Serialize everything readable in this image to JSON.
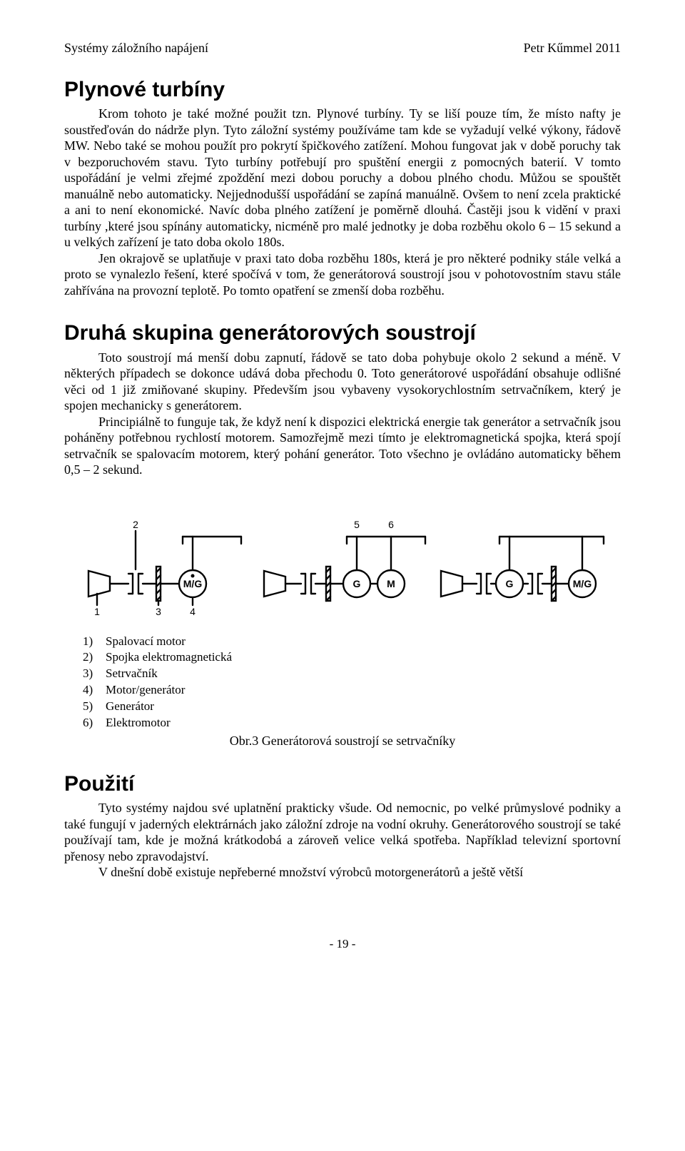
{
  "header": {
    "left": "Systémy záložního napájení",
    "right": "Petr Kűmmel  2011"
  },
  "section1": {
    "title": "Plynové turbíny",
    "p1": "Krom tohoto je také možné použit tzn. Plynové turbíny. Ty se liší pouze tím, že místo nafty je soustřeďován do nádrže plyn. Tyto záložní systémy používáme tam kde se vyžadují velké výkony, řádově MW. Nebo také se mohou použít pro pokrytí špičkového zatížení. Mohou fungovat jak v době poruchy tak v bezporuchovém stavu. Tyto turbíny potřebují pro spuštění energii z pomocných baterií. V tomto uspořádání je velmi zřejmé zpoždění mezi dobou poruchy a dobou plného chodu. Můžou se spouštět manuálně nebo automaticky. Nejjednodušší uspořádání se zapíná manuálně. Ovšem to není zcela praktické a ani to není ekonomické. Navíc doba plného zatížení je poměrně dlouhá. Častěji jsou k vidění v praxi  turbíny ,které jsou spínány automaticky, nicméně pro malé jednotky je doba rozběhu okolo 6 – 15 sekund a u velkých zařízení je tato doba okolo 180s.",
    "p2": "Jen okrajově se uplatňuje v praxi tato doba rozběhu 180s, která je pro některé podniky stále velká a proto se vynalezlo řešení, které spočívá v tom, že generátorová soustrojí jsou v pohotovostním stavu stále zahřívána na provozní teplotě. Po tomto opatření se zmenší doba rozběhu."
  },
  "section2": {
    "title": "Druhá skupina generátorových soustrojí",
    "p1": "Toto soustrojí má menší dobu zapnutí, řádově se tato doba pohybuje okolo 2 sekund a méně. V některých případech se dokonce udává doba přechodu 0. Toto generátorové uspořádání obsahuje odlišné věci od 1 již zmiňované skupiny. Především jsou vybaveny vysokorychlostním setrvačníkem, který je spojen mechanicky s generátorem.",
    "p2": "Principiálně to funguje tak, že když není k dispozici elektrická energie tak generátor a setrvačník jsou poháněny potřebnou rychlostí motorem. Samozřejmě mezi tímto je elektromagnetická spojka, která spojí setrvačník se spalovacím motorem, který pohání generátor. Toto všechno je ovládáno automaticky během 0,5 – 2 sekund."
  },
  "figure": {
    "panels": [
      {
        "nodes": [
          "M/G"
        ],
        "top_labels": [
          "2"
        ],
        "bottom_labels": [
          "1",
          "3",
          "4"
        ]
      },
      {
        "nodes": [
          "G",
          "M"
        ],
        "top_labels": [
          "5",
          "6"
        ]
      },
      {
        "nodes": [
          "G",
          "M/G"
        ]
      }
    ],
    "colors": {
      "stroke": "#000000",
      "bg": "#ffffff",
      "text": "#000000"
    },
    "stroke_width": 2.4,
    "font_size_labels": 14,
    "font_family": "Arial",
    "caption": "Obr.3 Generátorová soustrojí se setrvačníky"
  },
  "legend": [
    {
      "n": "1)",
      "t": "Spalovací motor"
    },
    {
      "n": "2)",
      "t": "Spojka elektromagnetická"
    },
    {
      "n": "3)",
      "t": "Setrvačník"
    },
    {
      "n": "4)",
      "t": "Motor/generátor"
    },
    {
      "n": "5)",
      "t": "Generátor"
    },
    {
      "n": "6)",
      "t": "Elektromotor"
    }
  ],
  "section3": {
    "title": "Použití",
    "p1": "Tyto systémy najdou své uplatnění prakticky všude. Od nemocnic, po velké průmyslové podniky a také fungují v jaderných elektrárnách jako záložní zdroje na vodní okruhy. Generátorového soustrojí se také používají tam, kde je možná krátkodobá a zároveň velice velká spotřeba. Například televizní sportovní přenosy nebo zpravodajství.",
    "p2": "V dnešní době existuje nepřeberné množství výrobců motorgenerátorů a ještě větší"
  },
  "page_number": "- 19 -"
}
